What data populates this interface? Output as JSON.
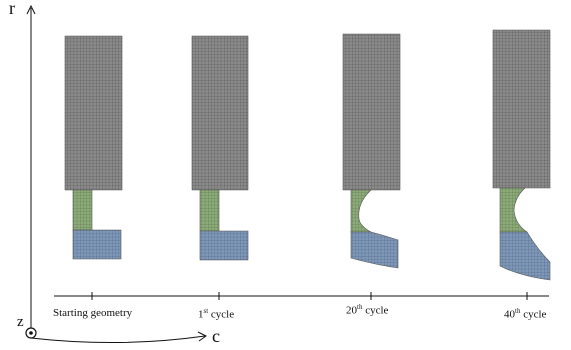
{
  "axes": {
    "r_label": "r",
    "z_label": "z",
    "c_label": "c"
  },
  "stages": [
    {
      "label": "Starting geometry",
      "superscript": ""
    },
    {
      "label_num": "1",
      "superscript": "st",
      "label_rest": " cycle"
    },
    {
      "label_num": "20",
      "superscript": "th",
      "label_rest": " cycle"
    },
    {
      "label_num": "40",
      "superscript": "th",
      "label_rest": " cycle"
    }
  ],
  "colors": {
    "upper_mesh": "#8a8a8a",
    "middle_mesh": "#8cab79",
    "lower_mesh": "#7f98b8",
    "grid_line": "#4a4a4a",
    "axis": "#111111"
  }
}
